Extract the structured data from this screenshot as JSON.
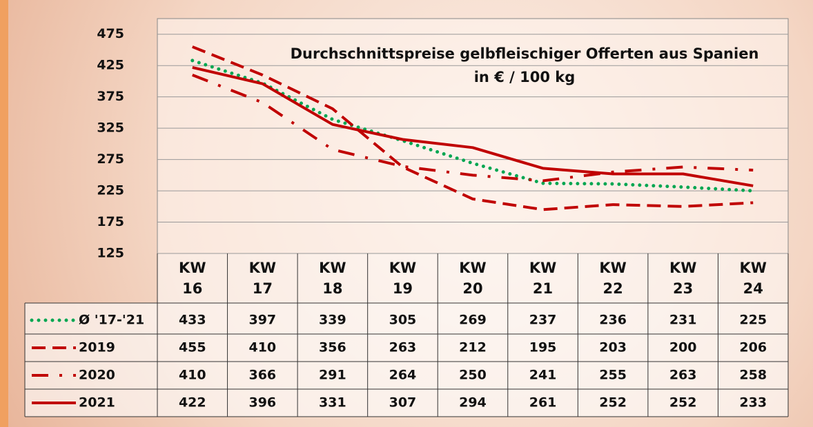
{
  "chart_data": {
    "type": "line",
    "title": "Durchschnittspreise gelbfleischiger Offerten aus Spanien",
    "subtitle": "in € / 100 kg",
    "categories": [
      "KW 16",
      "KW 17",
      "KW 18",
      "KW 19",
      "KW 20",
      "KW 21",
      "KW 22",
      "KW 23",
      "KW 24"
    ],
    "series": [
      {
        "name": "Ø '17-'21",
        "color": "#00a651",
        "style": "dotted",
        "values": [
          433,
          397,
          339,
          305,
          269,
          237,
          236,
          231,
          225
        ]
      },
      {
        "name": "2019",
        "color": "#c00000",
        "style": "dashed",
        "values": [
          455,
          410,
          356,
          263,
          212,
          195,
          203,
          200,
          206
        ]
      },
      {
        "name": "2020",
        "color": "#c00000",
        "style": "dashdot",
        "values": [
          410,
          366,
          291,
          264,
          250,
          241,
          255,
          263,
          258
        ]
      },
      {
        "name": "2021",
        "color": "#c00000",
        "style": "solid",
        "values": [
          422,
          396,
          331,
          307,
          294,
          261,
          252,
          252,
          233
        ]
      }
    ],
    "ylim": [
      125,
      500
    ],
    "yticks": [
      125,
      175,
      225,
      275,
      325,
      375,
      425,
      475
    ],
    "grid": true
  }
}
